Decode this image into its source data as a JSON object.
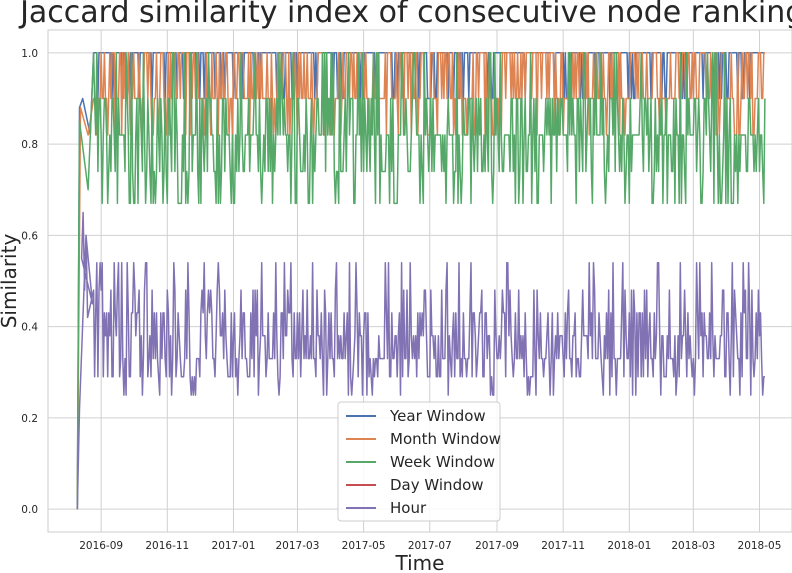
{
  "chart_data": {
    "type": "line",
    "title": "Jaccard similarity index of consecutive node rankings",
    "xlabel": "Time",
    "ylabel": "Similarity",
    "x_tick_labels": [
      "2016-09",
      "2016-11",
      "2017-01",
      "2017-03",
      "2017-05",
      "2017-07",
      "2017-09",
      "2017-11",
      "2018-01",
      "2018-03",
      "2018-05"
    ],
    "y_tick_labels": [
      "0.0",
      "0.2",
      "0.4",
      "0.6",
      "0.8",
      "1.0"
    ],
    "xlim": [
      "2016-07-14",
      "2018-05-31"
    ],
    "ylim": [
      -0.05,
      1.05
    ],
    "grid": true,
    "legend_position": "lower-center",
    "series": [
      {
        "name": "Year Window",
        "color": "#4c72b0",
        "points": [
          [
            "2016-08-10",
            0.0
          ],
          [
            "2016-08-12",
            0.88
          ],
          [
            "2016-08-15",
            0.9
          ],
          [
            "2016-08-22",
            0.82
          ],
          [
            "2016-09-01",
            1.0
          ],
          [
            "2016-09-15",
            0.95
          ],
          [
            "2016-10-01",
            1.0
          ],
          [
            "2016-11-01",
            0.98
          ],
          [
            "2017-01-01",
            1.0
          ],
          [
            "2017-05-01",
            0.98
          ],
          [
            "2017-09-01",
            1.0
          ],
          [
            "2018-01-01",
            0.98
          ],
          [
            "2018-05-06",
            1.0
          ]
        ]
      },
      {
        "name": "Month Window",
        "color": "#dd8452",
        "points": [
          [
            "2016-08-10",
            0.0
          ],
          [
            "2016-08-13",
            0.88
          ],
          [
            "2016-08-20",
            0.82
          ],
          [
            "2016-09-01",
            0.95
          ],
          [
            "2016-10-15",
            0.91
          ],
          [
            "2017-02-01",
            0.92
          ],
          [
            "2017-06-01",
            0.92
          ],
          [
            "2017-10-01",
            0.93
          ],
          [
            "2018-02-01",
            0.92
          ],
          [
            "2018-05-06",
            0.95
          ]
        ]
      },
      {
        "name": "Week Window",
        "color": "#55a868",
        "points": [
          [
            "2016-08-10",
            0.0
          ],
          [
            "2016-08-12",
            0.85
          ],
          [
            "2016-08-20",
            0.7
          ],
          [
            "2016-09-01",
            0.82
          ],
          [
            "2016-11-01",
            0.83
          ],
          [
            "2017-03-01",
            0.84
          ],
          [
            "2017-07-01",
            0.83
          ],
          [
            "2017-11-01",
            0.82
          ],
          [
            "2018-03-01",
            0.83
          ],
          [
            "2018-05-06",
            0.82
          ]
        ]
      },
      {
        "name": "Day Window",
        "color": "#c44e52",
        "points": []
      },
      {
        "name": "Hour",
        "color": "#8172b3",
        "points": [
          [
            "2016-08-10",
            0.0
          ],
          [
            "2016-08-12",
            0.22
          ],
          [
            "2016-08-18",
            0.6
          ],
          [
            "2016-08-24",
            0.45
          ],
          [
            "2016-09-05",
            0.35
          ],
          [
            "2016-10-01",
            0.36
          ],
          [
            "2016-11-01",
            0.4
          ],
          [
            "2017-01-01",
            0.4
          ],
          [
            "2017-04-01",
            0.38
          ],
          [
            "2017-07-01",
            0.36
          ],
          [
            "2017-10-01",
            0.34
          ],
          [
            "2018-01-01",
            0.34
          ],
          [
            "2018-03-01",
            0.34
          ],
          [
            "2018-05-06",
            0.3
          ]
        ]
      }
    ]
  }
}
